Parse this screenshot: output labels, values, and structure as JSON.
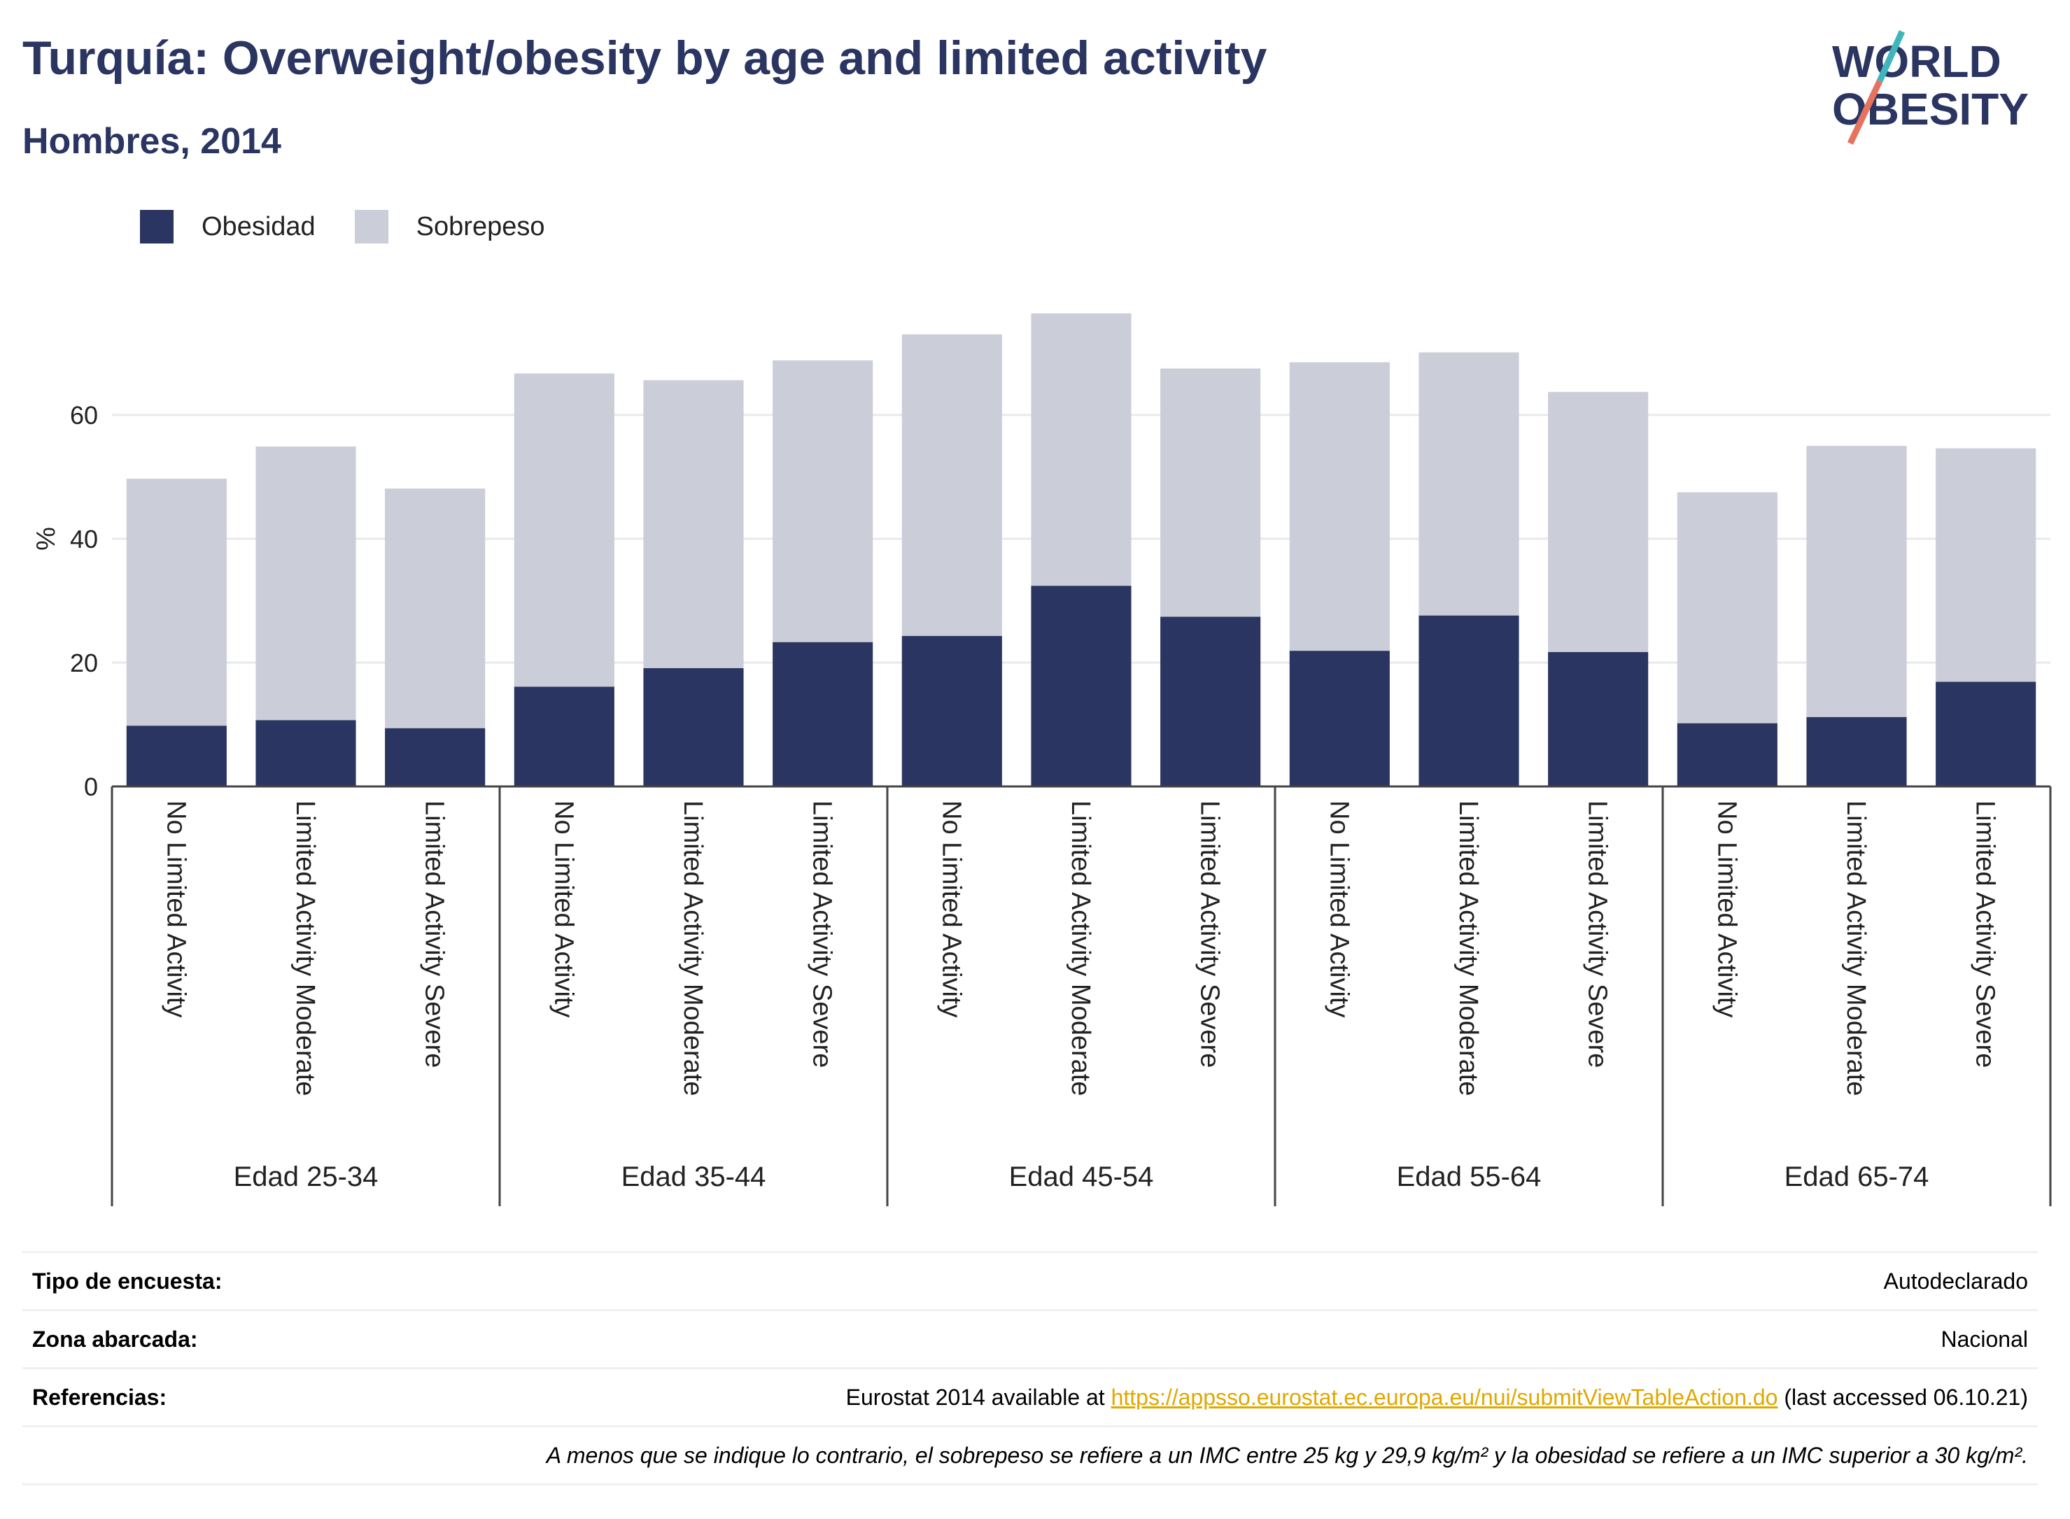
{
  "header": {
    "title": "Turquía: Overweight/obesity by age and limited activity",
    "subtitle": "Hombres, 2014"
  },
  "logo": {
    "line1": "WORLD",
    "line2": "OBESITY",
    "colors": {
      "text": "#2b3561",
      "slash_teal": "#3fb6bd",
      "slash_coral": "#e5735e"
    }
  },
  "legend": [
    {
      "label": "Obesidad",
      "color": "#2b3561"
    },
    {
      "label": "Sobrepeso",
      "color": "#cbcdd8"
    }
  ],
  "chart_data": {
    "type": "bar",
    "stacked": true,
    "ylabel": "%",
    "ylim": [
      0,
      80
    ],
    "yticks": [
      0,
      20,
      40,
      60
    ],
    "grid": true,
    "legend_position": "top-left",
    "groups": [
      "Edad 25-34",
      "Edad 35-44",
      "Edad 45-54",
      "Edad 55-64",
      "Edad 65-74"
    ],
    "categories": [
      "No Limited Activity",
      "Limited Activity Moderate",
      "Limited Activity Severe"
    ],
    "series": [
      {
        "name": "Obesidad",
        "color": "#2b3561",
        "values": [
          [
            9.8,
            10.7,
            9.4
          ],
          [
            16.1,
            19.1,
            23.3
          ],
          [
            24.3,
            32.4,
            27.4
          ],
          [
            21.9,
            27.6,
            21.7
          ],
          [
            10.2,
            11.2,
            16.9
          ]
        ]
      },
      {
        "name": "Sobrepeso",
        "color": "#cbcdd8",
        "values": [
          [
            39.9,
            44.2,
            38.7
          ],
          [
            50.6,
            46.5,
            45.5
          ],
          [
            48.7,
            44.0,
            40.1
          ],
          [
            46.6,
            42.5,
            42.0
          ],
          [
            37.3,
            43.8,
            37.7
          ]
        ]
      }
    ]
  },
  "footer": {
    "rows": [
      {
        "key": "Tipo de encuesta:",
        "value": "Autodeclarado"
      },
      {
        "key": "Zona abarcada:",
        "value": "Nacional"
      }
    ],
    "references": {
      "key": "Referencias:",
      "prefix": "Eurostat 2014 available at ",
      "link": "https://appsso.eurostat.ec.europa.eu/nui/submitViewTableAction.do",
      "suffix": " (last accessed 06.10.21)"
    },
    "note": "A menos que se indique lo contrario, el sobrepeso se refiere a un IMC entre 25 kg y 29,9 kg/m² y la obesidad se refiere a un IMC superior a 30 kg/m²."
  }
}
